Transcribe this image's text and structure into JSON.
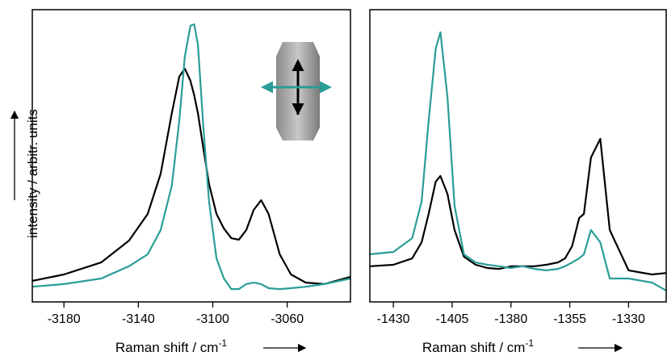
{
  "chart_data": [
    {
      "type": "line",
      "ylabel": "intensity / arbitr. units",
      "xlabel": "Raman shift / cm",
      "xlabel_sup": "-1",
      "xlim": [
        -3197,
        -3026
      ],
      "xticks": [
        -3180,
        -3140,
        -3100,
        -3060
      ],
      "ylim": [
        0,
        100
      ],
      "x": [
        -3197,
        -3180,
        -3160,
        -3145,
        -3135,
        -3128,
        -3122,
        -3118,
        -3115,
        -3112,
        -3110,
        -3108,
        -3105,
        -3102,
        -3098,
        -3094,
        -3090,
        -3086,
        -3082,
        -3078,
        -3074,
        -3070,
        -3064,
        -3058,
        -3050,
        -3040,
        -3026
      ],
      "series": [
        {
          "color": "#000000",
          "values": [
            7.2,
            9.4,
            13.5,
            21,
            30.1,
            43.9,
            64.6,
            77.1,
            79.8,
            75.7,
            70.7,
            64.6,
            52.2,
            40.3,
            30.1,
            25.1,
            21.8,
            21.3,
            24.6,
            31.5,
            34.8,
            30.1,
            16.3,
            9.4,
            6.6,
            6.1,
            8.6
          ]
        },
        {
          "color": "#2a9d96",
          "values": [
            5.2,
            6.1,
            8,
            12.2,
            16.3,
            24.6,
            39.8,
            61.9,
            84,
            94.5,
            95,
            88.1,
            59.1,
            34.3,
            14.9,
            8,
            4.4,
            4.4,
            6.1,
            6.6,
            6.1,
            4.7,
            4.4,
            4.7,
            5.2,
            6.1,
            8
          ]
        }
      ]
    },
    {
      "type": "line",
      "xlabel": "Raman shift / cm",
      "xlabel_sup": "-1",
      "xlim": [
        -1440,
        -1314
      ],
      "xticks": [
        -1430,
        -1405,
        -1380,
        -1355,
        -1330
      ],
      "ylim": [
        0,
        100
      ],
      "x": [
        -1440,
        -1430,
        -1422,
        -1418,
        -1415,
        -1412,
        -1410,
        -1407,
        -1404,
        -1400,
        -1395,
        -1390,
        -1385,
        -1380,
        -1375,
        -1370,
        -1365,
        -1360,
        -1357,
        -1354,
        -1351,
        -1349,
        -1346,
        -1342,
        -1338,
        -1330,
        -1320,
        -1314
      ],
      "series": [
        {
          "color": "#000000",
          "values": [
            12.2,
            12.7,
            14.9,
            20.4,
            30.1,
            41.2,
            43.1,
            37,
            24.6,
            15.5,
            12.7,
            11.6,
            11.3,
            12.2,
            12.2,
            12.2,
            12.7,
            13.5,
            14.9,
            19.1,
            28.7,
            30.1,
            49.4,
            55.8,
            24.6,
            10.8,
            9.4,
            9.9
          ]
        },
        {
          "color": "#2a9d96",
          "values": [
            16.3,
            17.1,
            21.8,
            34.3,
            61.9,
            86.7,
            92.3,
            70.2,
            32.9,
            16.3,
            13.5,
            12.7,
            12.2,
            11.6,
            12.2,
            11.3,
            10.8,
            11.3,
            12.2,
            13.5,
            14.9,
            16.3,
            24.6,
            20.4,
            8,
            8,
            6.6,
            3.9
          ]
        }
      ]
    }
  ]
}
